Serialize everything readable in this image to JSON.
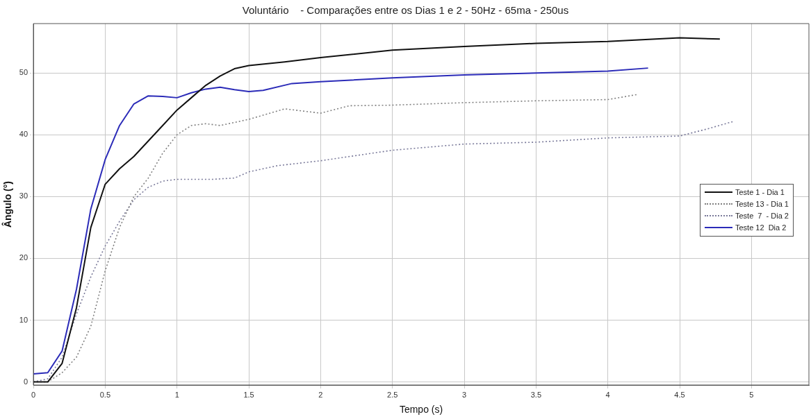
{
  "chart_data": {
    "type": "line",
    "title": "Voluntário    - Comparações entre os Dias 1 e 2 - 50Hz - 65ma - 250us",
    "xlabel": "Tempo (s)",
    "ylabel": "Ângulo (°)",
    "xlim": [
      0,
      5.4
    ],
    "xticks": [
      0,
      0.5,
      1,
      1.5,
      2,
      2.5,
      3,
      3.5,
      4,
      4.5,
      5
    ],
    "ylim": [
      -0.5,
      58
    ],
    "yticks": [
      0,
      10,
      20,
      30,
      40,
      50
    ],
    "grid": true,
    "legend": "right",
    "marker": "none",
    "series": [
      {
        "name": "Teste 1 - Dia 1",
        "color": "#111111",
        "line_style": "solid",
        "x": [
          0,
          0.1,
          0.2,
          0.3,
          0.4,
          0.5,
          0.6,
          0.7,
          0.8,
          0.9,
          1,
          1.1,
          1.2,
          1.3,
          1.4,
          1.5,
          1.75,
          2,
          2.5,
          3,
          3.5,
          4,
          4.5,
          4.78
        ],
        "values": [
          0,
          0,
          3,
          12,
          25,
          32,
          34.5,
          36.5,
          39,
          41.5,
          44,
          46,
          48,
          49.5,
          50.7,
          51.2,
          51.8,
          52.5,
          53.7,
          54.3,
          54.8,
          55.1,
          55.7,
          55.5
        ]
      },
      {
        "name": "Teste 13 - Dia 1",
        "color": "#808080",
        "line_style": "dotted",
        "x": [
          0,
          0.1,
          0.2,
          0.3,
          0.4,
          0.5,
          0.6,
          0.7,
          0.8,
          0.9,
          1,
          1.1,
          1.2,
          1.3,
          1.5,
          1.75,
          2,
          2.2,
          2.5,
          3,
          3.5,
          4,
          4.2
        ],
        "values": [
          0,
          0,
          1.5,
          4,
          9,
          18,
          25,
          30,
          33,
          37,
          40,
          41.5,
          41.8,
          41.5,
          42.5,
          44.2,
          43.5,
          44.7,
          44.8,
          45.2,
          45.5,
          45.7,
          46.5
        ]
      },
      {
        "name": "Teste  7  - Dia 2",
        "color": "#7a7a9a",
        "line_style": "dotted",
        "x": [
          0,
          0.1,
          0.2,
          0.3,
          0.4,
          0.5,
          0.6,
          0.7,
          0.8,
          0.9,
          1,
          1.25,
          1.4,
          1.5,
          1.7,
          2,
          2.5,
          3,
          3.5,
          4,
          4.5,
          4.7,
          4.88
        ],
        "values": [
          0,
          0.5,
          4,
          11,
          17,
          22,
          26,
          29.5,
          31.5,
          32.5,
          32.8,
          32.8,
          33,
          34,
          35,
          35.8,
          37.5,
          38.5,
          38.8,
          39.5,
          39.8,
          41,
          42.2
        ]
      },
      {
        "name": "Teste 12  Dia 2",
        "color": "#2b2bb8",
        "line_style": "solid",
        "x": [
          0,
          0.1,
          0.2,
          0.3,
          0.4,
          0.5,
          0.6,
          0.7,
          0.8,
          0.9,
          1,
          1.1,
          1.2,
          1.3,
          1.4,
          1.5,
          1.6,
          1.8,
          2,
          2.5,
          3,
          3.5,
          4,
          4.28
        ],
        "values": [
          1.3,
          1.5,
          5,
          15,
          28,
          36,
          41.5,
          45,
          46.3,
          46.2,
          46,
          46.8,
          47.4,
          47.7,
          47.3,
          47,
          47.2,
          48.3,
          48.6,
          49.2,
          49.7,
          50,
          50.3,
          50.8
        ]
      }
    ]
  }
}
